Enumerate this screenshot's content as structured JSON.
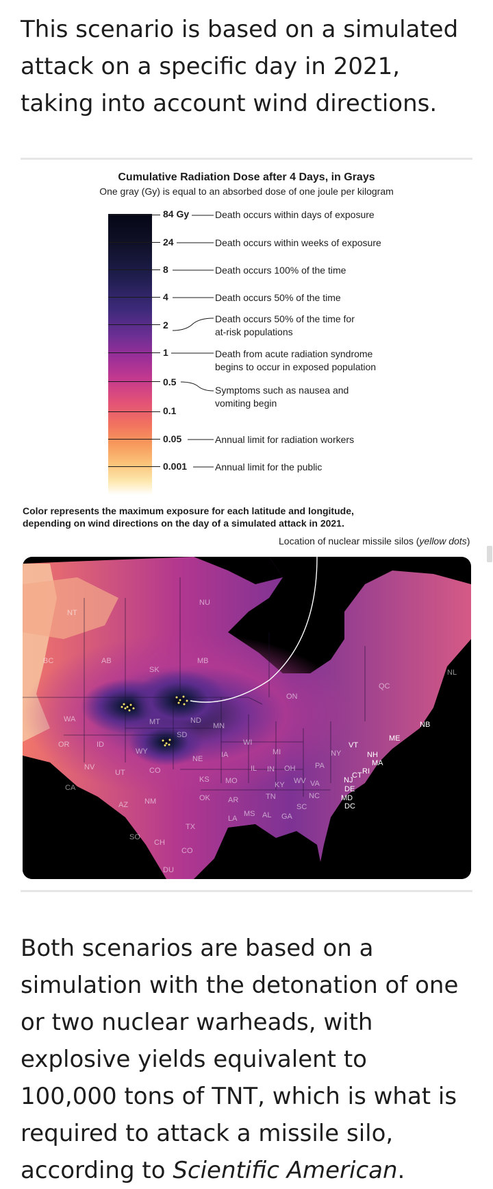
{
  "intro_text": "This scenario is based on a simulated attack on a specific day in 2021, taking into account wind directions.",
  "legend": {
    "title": "Cumulative Radiation Dose after 4 Days, in Grays",
    "subtitle": "One gray (Gy) is equal to an absorbed dose of one joule per kilogram",
    "ticks": [
      {
        "value": "84 Gy",
        "desc": "Death occurs within days of exposure"
      },
      {
        "value": "24",
        "desc": "Death occurs within weeks of exposure"
      },
      {
        "value": "8",
        "desc": "Death occurs 100% of the time"
      },
      {
        "value": "4",
        "desc": "Death occurs 50% of the time"
      },
      {
        "value": "2",
        "desc_line1": "Death occurs 50% of the time for",
        "desc_line2": "at-risk populations"
      },
      {
        "value": "1",
        "desc_line1": "Death from acute radiation syndrome",
        "desc_line2": "begins to occur in exposed population"
      },
      {
        "value": "0.5",
        "desc_line1": "Symptoms such as nausea and",
        "desc_line2": "vomiting begin"
      },
      {
        "value": "0.1"
      },
      {
        "value": "0.05",
        "desc": "Annual limit for radiation workers"
      },
      {
        "value": "0.001",
        "desc": "Annual limit for the public"
      }
    ]
  },
  "map_note": {
    "line1": "Color represents the maximum exposure for each latitude and longitude,",
    "line2": "depending on wind directions on the day of a simulated attack in 2021."
  },
  "silo_note": {
    "text": "Location of nuclear missile silos (",
    "italic": "yellow dots",
    "close": ")"
  },
  "map_labels": {
    "canada": [
      "NU",
      "NT",
      "BC",
      "AB",
      "SK",
      "MB",
      "ON",
      "QC",
      "NL",
      "NB"
    ],
    "us": [
      "WA",
      "OR",
      "CA",
      "ID",
      "NV",
      "MT",
      "WY",
      "UT",
      "AZ",
      "CO",
      "NM",
      "ND",
      "SD",
      "NE",
      "KS",
      "OK",
      "TX",
      "MN",
      "IA",
      "MO",
      "AR",
      "LA",
      "WI",
      "IL",
      "MI",
      "IN",
      "OH",
      "KY",
      "TN",
      "MS",
      "AL",
      "GA",
      "SC",
      "NC",
      "VA",
      "WV",
      "PA",
      "NY",
      "VT",
      "ME",
      "NH",
      "MA",
      "RI",
      "CT",
      "NJ",
      "DE",
      "MD",
      "DC"
    ],
    "mexico": [
      "SO",
      "CH",
      "CO",
      "DU"
    ]
  },
  "closing_text": {
    "main": "Both scenarios are based on a simulation with the detonation of one or two nuclear warheads, with explosive yields equivalent to 100,000 tons of TNT, which is what is required to attack a missile silo, according to ",
    "italic": "Scientific American",
    "end": "."
  },
  "colors": {
    "ramp_top": "#050615",
    "ramp_mid": "#c53a8e",
    "ramp_bottom": "#fde7ad",
    "silo_dots": "#f5e36a"
  }
}
